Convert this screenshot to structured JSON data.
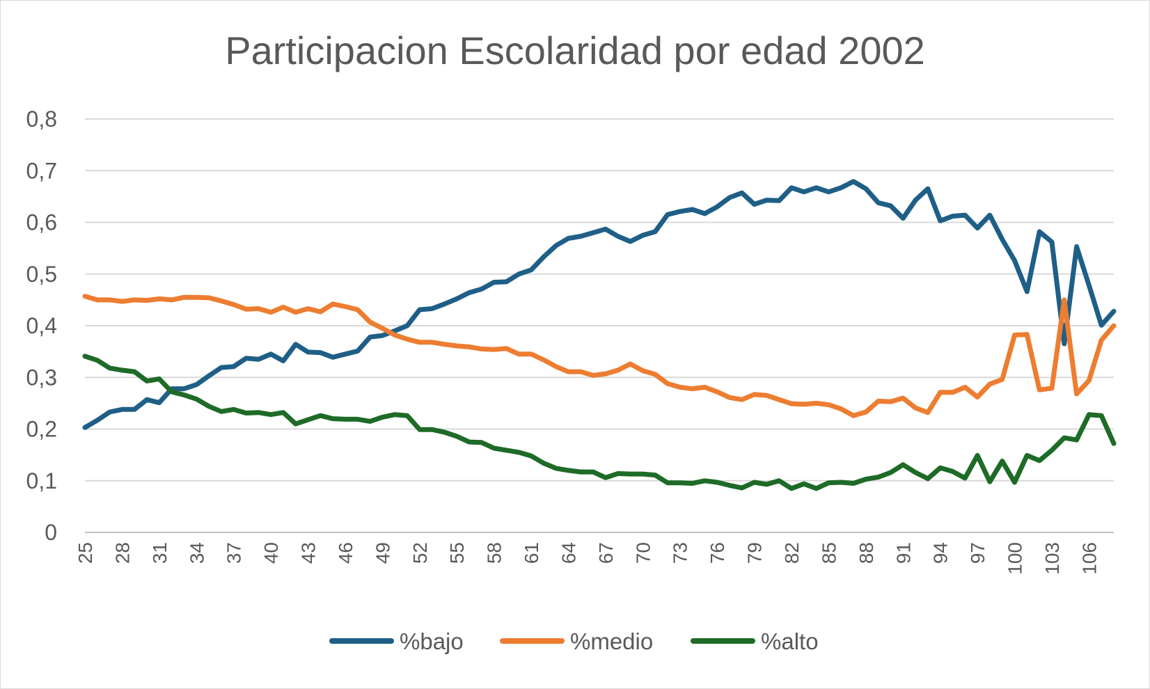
{
  "chart_data": {
    "type": "line",
    "title": "Participacion Escolaridad por edad 2002",
    "xlabel": "",
    "ylabel": "",
    "ylim": [
      0,
      0.8
    ],
    "yticks": [
      "0",
      "0,1",
      "0,2",
      "0,3",
      "0,4",
      "0,5",
      "0,6",
      "0,7",
      "0,8"
    ],
    "grid": true,
    "legend_position": "bottom",
    "x": [
      25,
      26,
      27,
      28,
      29,
      30,
      31,
      32,
      33,
      34,
      35,
      36,
      37,
      38,
      39,
      40,
      41,
      42,
      43,
      44,
      45,
      46,
      47,
      48,
      49,
      50,
      51,
      52,
      53,
      54,
      55,
      56,
      57,
      58,
      59,
      60,
      61,
      62,
      63,
      64,
      65,
      66,
      67,
      68,
      69,
      70,
      71,
      72,
      73,
      74,
      75,
      76,
      77,
      78,
      79,
      80,
      81,
      82,
      83,
      84,
      85,
      86,
      87,
      88,
      89,
      90,
      91,
      92,
      93,
      94,
      95,
      96,
      97,
      98,
      99,
      100,
      101,
      102,
      103,
      104,
      105,
      106,
      107,
      108
    ],
    "xticks": [
      25,
      28,
      31,
      34,
      37,
      40,
      43,
      46,
      49,
      52,
      55,
      58,
      61,
      64,
      67,
      70,
      73,
      76,
      79,
      82,
      85,
      88,
      91,
      94,
      97,
      100,
      103,
      106
    ],
    "series": [
      {
        "name": "%bajo",
        "color": "#1f5f87",
        "values": [
          0.203,
          0.217,
          0.233,
          0.238,
          0.238,
          0.257,
          0.251,
          0.278,
          0.278,
          0.286,
          0.303,
          0.319,
          0.321,
          0.337,
          0.335,
          0.345,
          0.332,
          0.364,
          0.349,
          0.348,
          0.339,
          0.345,
          0.351,
          0.378,
          0.381,
          0.39,
          0.4,
          0.431,
          0.433,
          0.442,
          0.452,
          0.464,
          0.471,
          0.484,
          0.485,
          0.5,
          0.508,
          0.533,
          0.555,
          0.569,
          0.573,
          0.58,
          0.587,
          0.573,
          0.563,
          0.575,
          0.582,
          0.615,
          0.621,
          0.625,
          0.617,
          0.63,
          0.648,
          0.657,
          0.635,
          0.643,
          0.642,
          0.667,
          0.659,
          0.667,
          0.659,
          0.667,
          0.679,
          0.665,
          0.638,
          0.632,
          0.608,
          0.643,
          0.665,
          0.603,
          0.612,
          0.614,
          0.589,
          0.614,
          0.567,
          0.526,
          0.466,
          0.582,
          0.562,
          0.365,
          0.553,
          0.478,
          0.401,
          0.428
        ]
      },
      {
        "name": "%medio",
        "color": "#ed7d31",
        "values": [
          0.457,
          0.45,
          0.45,
          0.447,
          0.45,
          0.449,
          0.452,
          0.45,
          0.455,
          0.455,
          0.454,
          0.448,
          0.441,
          0.432,
          0.433,
          0.426,
          0.436,
          0.426,
          0.433,
          0.427,
          0.442,
          0.437,
          0.431,
          0.407,
          0.395,
          0.382,
          0.374,
          0.368,
          0.368,
          0.364,
          0.361,
          0.359,
          0.355,
          0.354,
          0.356,
          0.345,
          0.345,
          0.334,
          0.321,
          0.311,
          0.311,
          0.304,
          0.307,
          0.314,
          0.326,
          0.313,
          0.306,
          0.288,
          0.281,
          0.278,
          0.281,
          0.272,
          0.261,
          0.257,
          0.267,
          0.265,
          0.257,
          0.249,
          0.248,
          0.25,
          0.247,
          0.239,
          0.226,
          0.233,
          0.254,
          0.253,
          0.26,
          0.241,
          0.232,
          0.271,
          0.271,
          0.281,
          0.262,
          0.287,
          0.296,
          0.382,
          0.383,
          0.276,
          0.279,
          0.45,
          0.268,
          0.294,
          0.372,
          0.4
        ]
      },
      {
        "name": "%alto",
        "color": "#1e6b27",
        "values": [
          0.341,
          0.333,
          0.318,
          0.314,
          0.311,
          0.293,
          0.297,
          0.272,
          0.266,
          0.258,
          0.244,
          0.234,
          0.238,
          0.231,
          0.232,
          0.228,
          0.232,
          0.21,
          0.218,
          0.226,
          0.22,
          0.219,
          0.219,
          0.215,
          0.223,
          0.228,
          0.226,
          0.199,
          0.199,
          0.194,
          0.186,
          0.175,
          0.174,
          0.163,
          0.159,
          0.155,
          0.148,
          0.134,
          0.124,
          0.12,
          0.117,
          0.117,
          0.106,
          0.114,
          0.113,
          0.113,
          0.111,
          0.096,
          0.096,
          0.095,
          0.1,
          0.097,
          0.091,
          0.086,
          0.097,
          0.093,
          0.1,
          0.085,
          0.094,
          0.085,
          0.096,
          0.097,
          0.095,
          0.103,
          0.107,
          0.116,
          0.131,
          0.116,
          0.104,
          0.125,
          0.118,
          0.105,
          0.149,
          0.098,
          0.138,
          0.097,
          0.149,
          0.139,
          0.159,
          0.183,
          0.179,
          0.228,
          0.226,
          0.172
        ]
      }
    ]
  }
}
